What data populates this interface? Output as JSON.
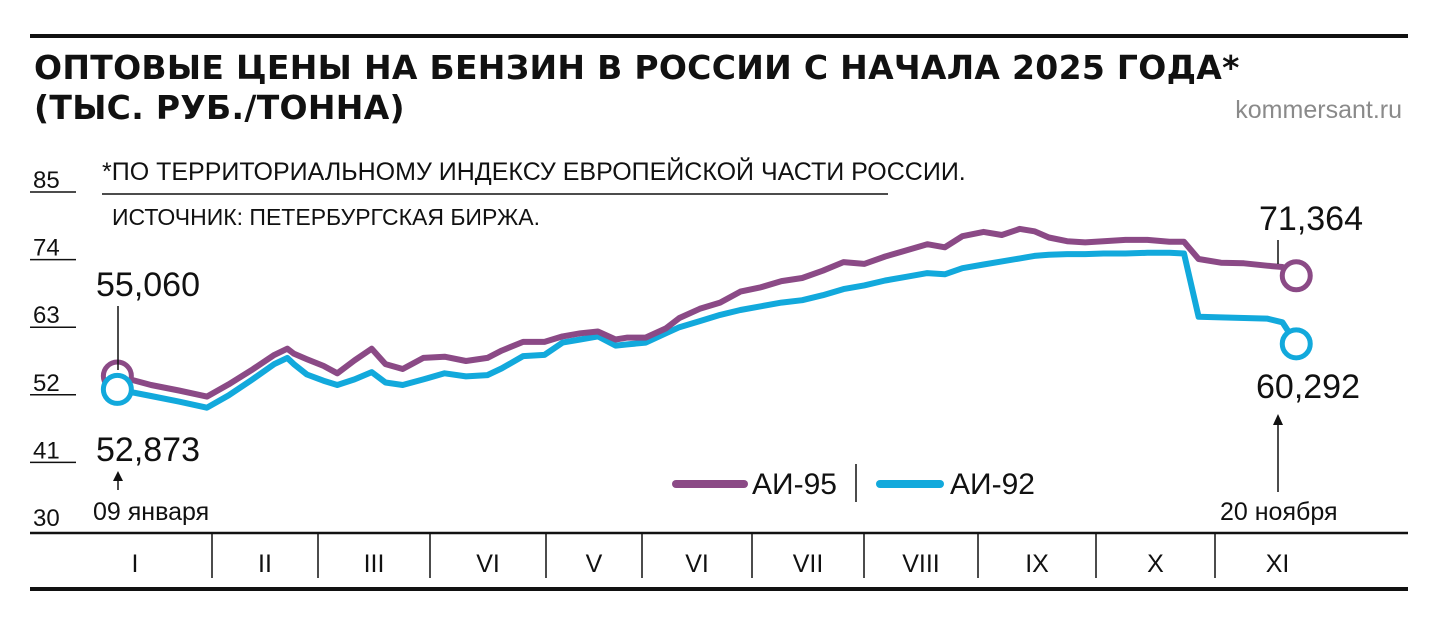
{
  "chart_data": {
    "type": "line",
    "title_line1": "ОПТОВЫЕ ЦЕНЫ НА БЕНЗИН В РОССИИ С НАЧАЛА 2025 ГОДА*",
    "title_line2": "(ТЫС. РУБ./ТОННА)",
    "site": "kommersant.ru",
    "footnote": "*ПО ТЕРРИТОРИАЛЬНОМУ ИНДЕКСУ ЕВРОПЕЙСКОЙ ЧАСТИ РОССИИ.",
    "source": "ИСТОЧНИК: ПЕТЕРБУРГСКАЯ БИРЖА.",
    "y_ticks": [
      "85",
      "74",
      "63",
      "52",
      "41",
      "30"
    ],
    "y_tick_values": [
      85,
      74,
      63,
      52,
      41,
      30
    ],
    "ylim": [
      30,
      85
    ],
    "months": [
      "I",
      "II",
      "III",
      "VI",
      "V",
      "VI",
      "VII",
      "VIII",
      "IX",
      "X",
      "XI"
    ],
    "start_date": "09 января",
    "end_date": "20 ноября",
    "colors": {
      "ai95": "#8b4a86",
      "ai92": "#12a9dc"
    },
    "series": [
      {
        "name": "АИ-95",
        "start_label": "55,060",
        "end_label": "71,364",
        "points": [
          [
            0.0,
            55.06
          ],
          [
            0.3,
            53.6
          ],
          [
            0.55,
            52.7
          ],
          [
            0.8,
            51.7
          ],
          [
            1.1,
            53.7
          ],
          [
            1.45,
            56.0
          ],
          [
            1.8,
            58.5
          ],
          [
            2.0,
            59.5
          ],
          [
            2.1,
            58.7
          ],
          [
            2.3,
            57.8
          ],
          [
            2.55,
            56.7
          ],
          [
            2.75,
            55.5
          ],
          [
            3.0,
            57.6
          ],
          [
            3.25,
            59.5
          ],
          [
            3.45,
            57.0
          ],
          [
            3.7,
            56.2
          ],
          [
            4.0,
            58.0
          ],
          [
            4.3,
            58.2
          ],
          [
            4.6,
            57.5
          ],
          [
            4.9,
            58.0
          ],
          [
            5.1,
            59.2
          ],
          [
            5.4,
            60.6
          ],
          [
            5.7,
            60.6
          ],
          [
            6.0,
            61.5
          ],
          [
            6.3,
            62.0
          ],
          [
            6.6,
            62.3
          ],
          [
            6.9,
            61.0
          ],
          [
            7.1,
            61.3
          ],
          [
            7.4,
            61.3
          ],
          [
            7.7,
            62.8
          ],
          [
            7.9,
            64.5
          ],
          [
            8.2,
            66.0
          ],
          [
            8.5,
            67.0
          ],
          [
            8.8,
            68.8
          ],
          [
            9.1,
            69.5
          ],
          [
            9.4,
            70.5
          ],
          [
            9.7,
            71.0
          ],
          [
            10.0,
            72.2
          ],
          [
            10.3,
            73.6
          ],
          [
            10.6,
            73.3
          ],
          [
            10.9,
            74.5
          ],
          [
            11.2,
            75.5
          ],
          [
            11.5,
            76.5
          ],
          [
            11.75,
            76.0
          ],
          [
            12.0,
            77.8
          ],
          [
            12.3,
            78.5
          ],
          [
            12.55,
            78.0
          ],
          [
            12.8,
            79.0
          ],
          [
            13.0,
            78.6
          ],
          [
            13.2,
            77.6
          ],
          [
            13.45,
            77.0
          ],
          [
            13.7,
            76.8
          ],
          [
            13.95,
            77.0
          ],
          [
            14.25,
            77.2
          ],
          [
            14.55,
            77.2
          ],
          [
            14.85,
            76.9
          ],
          [
            15.05,
            76.9
          ],
          [
            15.25,
            74.1
          ],
          [
            15.55,
            73.5
          ],
          [
            15.85,
            73.4
          ],
          [
            16.15,
            73.0
          ],
          [
            16.35,
            72.8
          ],
          [
            16.53,
            71.364
          ]
        ]
      },
      {
        "name": "АИ-92",
        "start_label": "52,873",
        "end_label": "60,292",
        "points": [
          [
            0.0,
            52.873
          ],
          [
            0.3,
            51.8
          ],
          [
            0.55,
            50.9
          ],
          [
            0.8,
            49.9
          ],
          [
            1.1,
            51.9
          ],
          [
            1.45,
            54.4
          ],
          [
            1.8,
            57.0
          ],
          [
            2.0,
            58.0
          ],
          [
            2.1,
            57.0
          ],
          [
            2.3,
            55.3
          ],
          [
            2.55,
            54.3
          ],
          [
            2.75,
            53.6
          ],
          [
            3.0,
            54.5
          ],
          [
            3.25,
            55.7
          ],
          [
            3.45,
            54.0
          ],
          [
            3.7,
            53.6
          ],
          [
            4.0,
            54.5
          ],
          [
            4.3,
            55.5
          ],
          [
            4.6,
            55.0
          ],
          [
            4.9,
            55.2
          ],
          [
            5.1,
            56.3
          ],
          [
            5.4,
            58.3
          ],
          [
            5.7,
            58.5
          ],
          [
            6.0,
            60.5
          ],
          [
            6.3,
            61.0
          ],
          [
            6.6,
            61.5
          ],
          [
            6.9,
            60.0
          ],
          [
            7.1,
            60.2
          ],
          [
            7.4,
            60.5
          ],
          [
            7.7,
            62.0
          ],
          [
            7.9,
            63.0
          ],
          [
            8.2,
            64.0
          ],
          [
            8.5,
            65.0
          ],
          [
            8.8,
            65.8
          ],
          [
            9.1,
            66.4
          ],
          [
            9.4,
            67.0
          ],
          [
            9.7,
            67.4
          ],
          [
            10.0,
            68.2
          ],
          [
            10.3,
            69.2
          ],
          [
            10.6,
            69.8
          ],
          [
            10.9,
            70.6
          ],
          [
            11.2,
            71.2
          ],
          [
            11.5,
            71.8
          ],
          [
            11.75,
            71.6
          ],
          [
            12.0,
            72.6
          ],
          [
            12.3,
            73.2
          ],
          [
            12.55,
            73.7
          ],
          [
            12.8,
            74.2
          ],
          [
            13.0,
            74.6
          ],
          [
            13.2,
            74.8
          ],
          [
            13.45,
            74.9
          ],
          [
            13.7,
            74.9
          ],
          [
            13.95,
            75.0
          ],
          [
            14.25,
            75.0
          ],
          [
            14.55,
            75.1
          ],
          [
            14.85,
            75.1
          ],
          [
            15.05,
            75.0
          ],
          [
            15.25,
            64.7
          ],
          [
            15.55,
            64.6
          ],
          [
            15.85,
            64.5
          ],
          [
            16.15,
            64.4
          ],
          [
            16.35,
            63.8
          ],
          [
            16.53,
            60.292
          ]
        ]
      }
    ]
  }
}
